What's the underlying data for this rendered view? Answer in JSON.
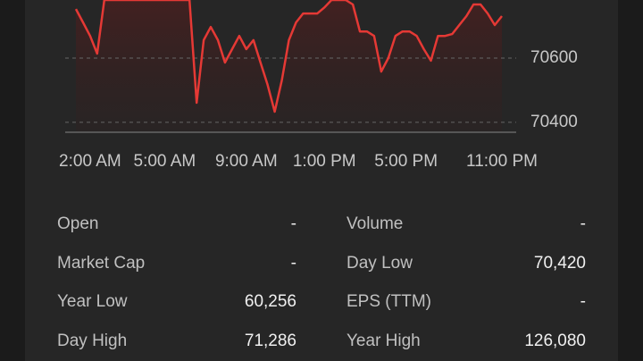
{
  "chart_data": {
    "type": "line",
    "color": "#e53935",
    "x": [
      0,
      1,
      2,
      3,
      4,
      5,
      6,
      7,
      8,
      9,
      10,
      11,
      12,
      13,
      14,
      15,
      16,
      17,
      18,
      19,
      20,
      21,
      22,
      23,
      24,
      25,
      26,
      27,
      28,
      29,
      30,
      31,
      32,
      33,
      34,
      35,
      36,
      37,
      38,
      39,
      40,
      41,
      42,
      43,
      44,
      45,
      46,
      47,
      48,
      49,
      50,
      51,
      52,
      53,
      54,
      55,
      56,
      57,
      58,
      59,
      60
    ],
    "values": [
      70753,
      70711,
      70669,
      70614,
      70781,
      70781,
      70781,
      70781,
      70781,
      70781,
      70781,
      70781,
      70781,
      70781,
      70781,
      70781,
      70781,
      70461,
      70656,
      70697,
      70656,
      70586,
      70628,
      70669,
      70628,
      70656,
      70586,
      70517,
      70433,
      70531,
      70656,
      70711,
      70739,
      70739,
      70739,
      70758,
      70781,
      70781,
      70781,
      70767,
      70683,
      70683,
      70669,
      70558,
      70600,
      70669,
      70683,
      70683,
      70669,
      70628,
      70592,
      70669,
      70669,
      70675,
      70703,
      70731,
      70767,
      70767,
      70739,
      70703,
      70731
    ],
    "xlim": [
      0,
      60
    ],
    "xticks": [
      {
        "value": 2,
        "label": "2:00 AM"
      },
      {
        "value": 12.5,
        "label": "5:00 AM"
      },
      {
        "value": 24,
        "label": "9:00 AM"
      },
      {
        "value": 35,
        "label": "1:00 PM"
      },
      {
        "value": 46.5,
        "label": "5:00 PM"
      },
      {
        "value": 60,
        "label": "11:00 PM"
      }
    ],
    "ylim": [
      70369,
      70781
    ],
    "yticks": [
      70400,
      70600
    ],
    "grid": true
  },
  "stats": {
    "rows": [
      [
        {
          "label": "Open",
          "value": "-"
        },
        {
          "label": "Volume",
          "value": "-"
        }
      ],
      [
        {
          "label": "Market Cap",
          "value": "-"
        },
        {
          "label": "Day Low",
          "value": "70,420"
        }
      ],
      [
        {
          "label": "Year Low",
          "value": "60,256"
        },
        {
          "label": "EPS (TTM)",
          "value": "-"
        }
      ],
      [
        {
          "label": "Day High",
          "value": "71,286"
        },
        {
          "label": "Year High",
          "value": "126,080"
        }
      ]
    ]
  }
}
